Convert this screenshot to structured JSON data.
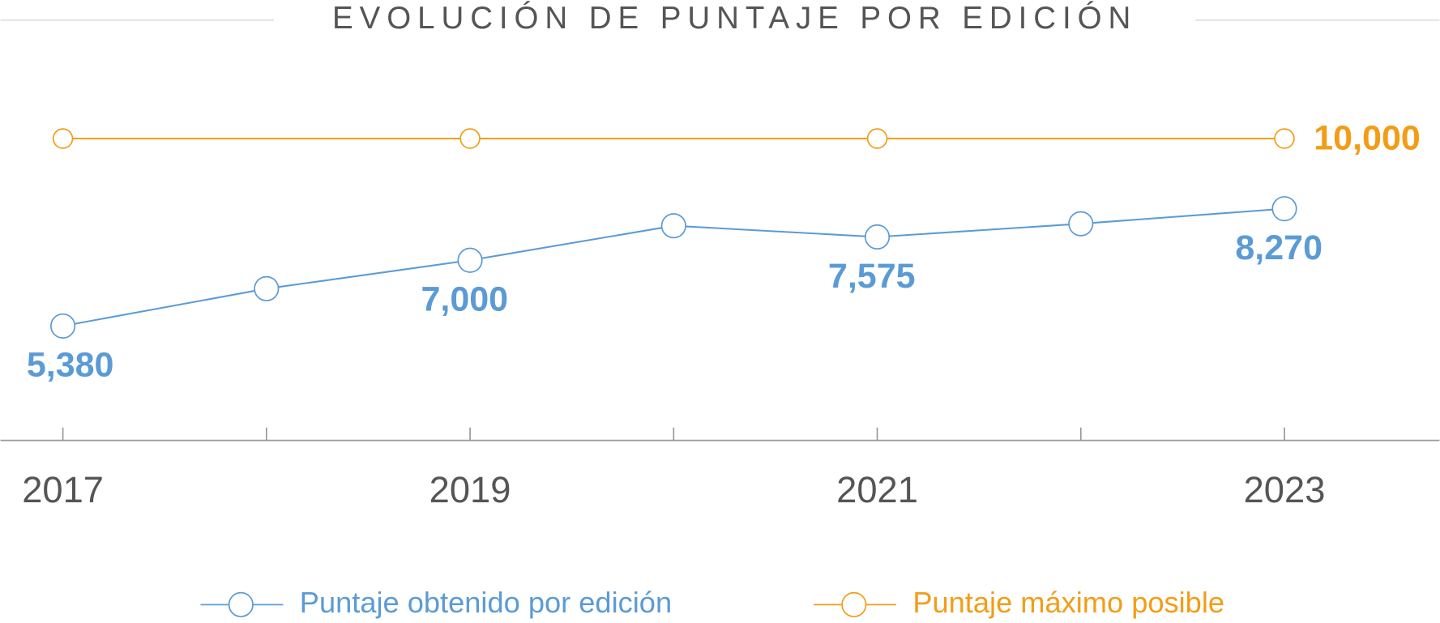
{
  "chart_data": {
    "type": "line",
    "title": "EVOLUCIÓN DE PUNTAJE POR EDICIÓN",
    "categories": [
      "2017",
      null,
      "2019",
      null,
      "2021",
      null,
      "2023"
    ],
    "series": [
      {
        "name": "Puntaje obtenido por edición",
        "color": "#5b9bd5",
        "values": [
          5380,
          6300,
          7000,
          7850,
          7575,
          7900,
          8270
        ],
        "value_labels": [
          "5,380",
          null,
          "7,000",
          null,
          "7,575",
          null,
          "8,270"
        ]
      },
      {
        "name": "Puntaje máximo posible",
        "color": "#f29d17",
        "values": [
          10000,
          10000,
          10000,
          10000,
          10000,
          10000,
          10000
        ],
        "value_labels": [
          null,
          null,
          null,
          null,
          null,
          null,
          "10,000"
        ]
      }
    ],
    "ylim": [
      2560,
      10000
    ]
  }
}
